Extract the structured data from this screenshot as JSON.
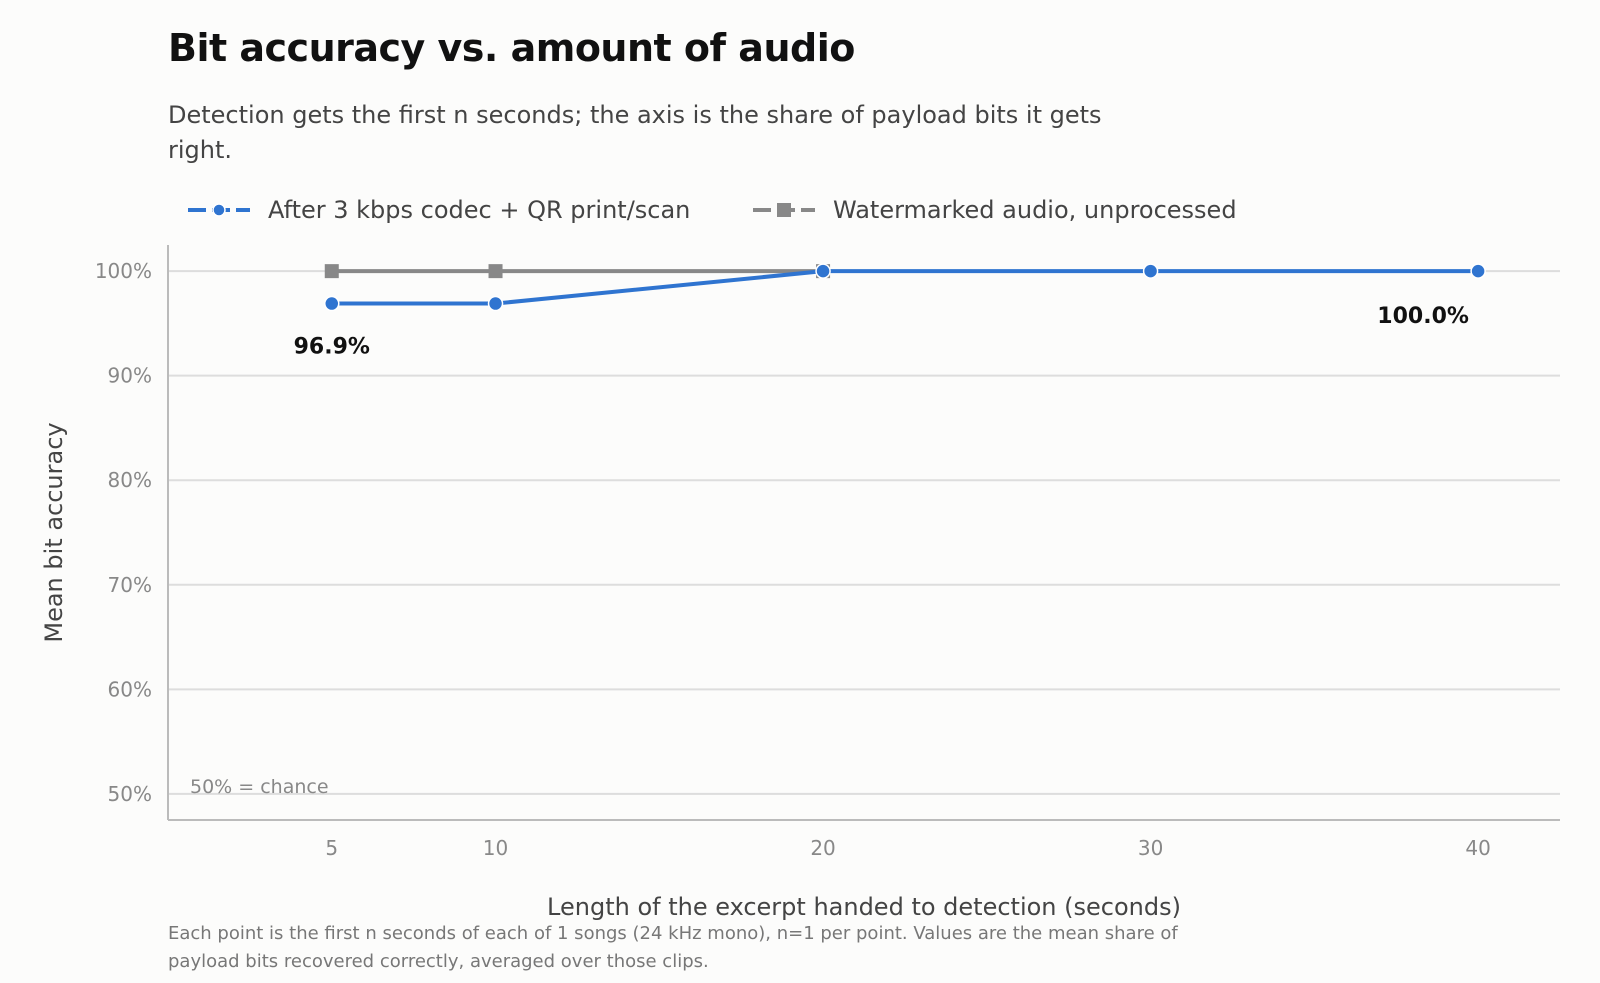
{
  "title": "Bit accuracy vs. amount of audio",
  "subtitle": "Detection gets the first n seconds; the axis is the share of payload bits it gets right.",
  "caption": "Each point is the first n seconds of each of 1 songs (24 kHz mono), n=1 per point. Values are the mean share of payload bits recovered correctly, averaged over those clips.",
  "chart_data": {
    "type": "line",
    "title": "Bit accuracy vs. amount of audio",
    "xlabel": "Length of the excerpt handed to detection (seconds)",
    "ylabel": "Mean bit accuracy",
    "xlim": [
      0,
      42.5
    ],
    "ylim": [
      47.5,
      102.5
    ],
    "x_ticks": [
      5,
      10,
      20,
      30,
      40
    ],
    "x_tick_labels": [
      "5",
      "10",
      "20",
      "30",
      "40"
    ],
    "y_ticks": [
      50,
      60,
      70,
      80,
      90,
      100
    ],
    "y_tick_labels": [
      "50%",
      "60%",
      "70%",
      "80%",
      "90%",
      "100%"
    ],
    "grid": "horizontal",
    "legend_position": "top-left",
    "chance_note": "50% = chance",
    "series": [
      {
        "name": "Watermarked audio, unprocessed",
        "color": "#888888",
        "marker": "square",
        "x": [
          5,
          10,
          20
        ],
        "y": [
          100,
          100,
          100
        ]
      },
      {
        "name": "After 3 kbps codec + QR print/scan",
        "color": "#2f74d0",
        "marker": "circle",
        "x": [
          5,
          10,
          20,
          30,
          40
        ],
        "y": [
          96.9,
          96.9,
          100,
          100,
          100
        ]
      }
    ],
    "annotations": [
      {
        "text": "96.9%",
        "x": 5,
        "y": 96.9
      },
      {
        "text": "100.0%",
        "x": 40,
        "y": 100
      }
    ]
  }
}
